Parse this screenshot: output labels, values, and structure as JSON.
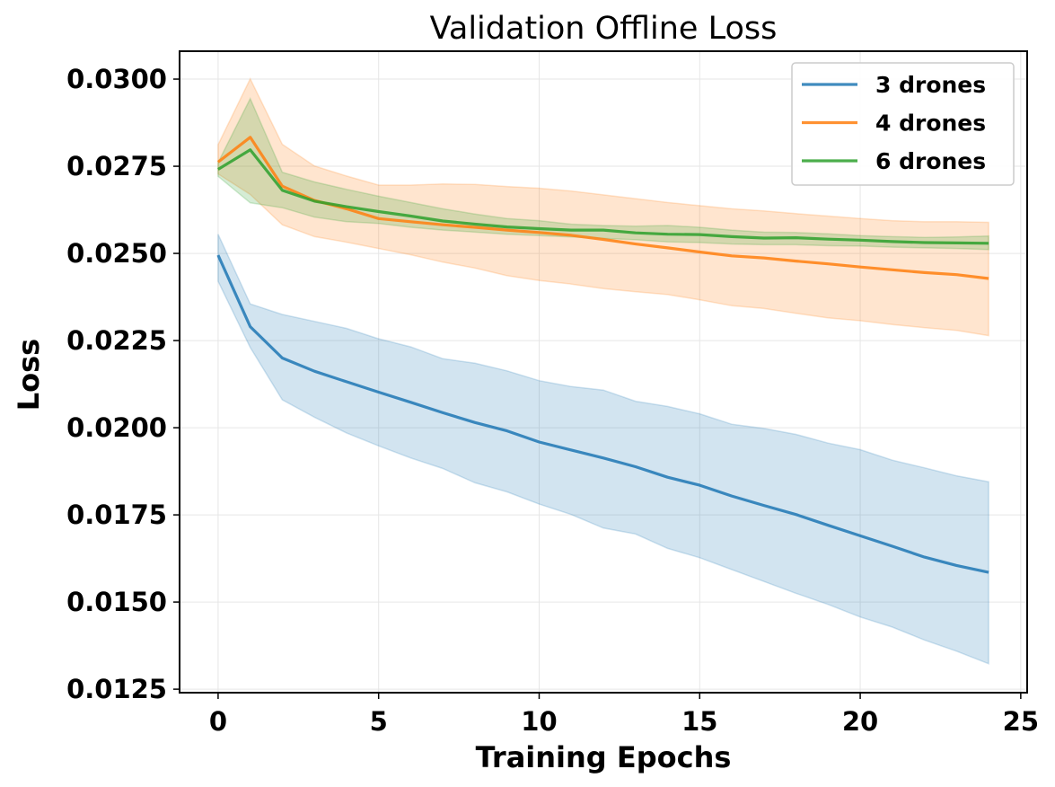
{
  "chart_data": {
    "type": "line",
    "title": "Validation Offline Loss",
    "xlabel": "Training Epochs",
    "ylabel": "Loss",
    "xlim": [
      -1.2,
      25.2
    ],
    "ylim": [
      0.0124,
      0.0308
    ],
    "xticks": [
      0,
      5,
      10,
      15,
      20,
      25
    ],
    "xtick_labels": [
      "0",
      "5",
      "10",
      "15",
      "20",
      "25"
    ],
    "yticks": [
      0.0125,
      0.015,
      0.0175,
      0.02,
      0.0225,
      0.025,
      0.0275,
      0.03
    ],
    "ytick_labels": [
      "0.0125",
      "0.0150",
      "0.0175",
      "0.0200",
      "0.0225",
      "0.0250",
      "0.0275",
      "0.0300"
    ],
    "grid": true,
    "legend_position": "top-right",
    "x": [
      0,
      1,
      2,
      3,
      4,
      5,
      6,
      7,
      8,
      9,
      10,
      11,
      12,
      13,
      14,
      15,
      16,
      17,
      18,
      19,
      20,
      21,
      22,
      23,
      24
    ],
    "series": [
      {
        "name": "3 drones",
        "color": "#1f77b4",
        "values": [
          0.02495,
          0.0229,
          0.022,
          0.02162,
          0.02132,
          0.02102,
          0.02073,
          0.02043,
          0.02015,
          0.01991,
          0.01959,
          0.01936,
          0.01913,
          0.01888,
          0.01858,
          0.01835,
          0.01804,
          0.01777,
          0.01751,
          0.0172,
          0.0169,
          0.0166,
          0.01629,
          0.01605,
          0.01585
        ],
        "upper": [
          0.02555,
          0.02355,
          0.02325,
          0.02305,
          0.02285,
          0.02255,
          0.02232,
          0.02198,
          0.02185,
          0.02163,
          0.02135,
          0.02118,
          0.02108,
          0.02076,
          0.02061,
          0.0204,
          0.0201,
          0.01998,
          0.01981,
          0.01956,
          0.01937,
          0.01907,
          0.01885,
          0.01862,
          0.01845
        ],
        "lower": [
          0.0242,
          0.0223,
          0.0208,
          0.0203,
          0.01985,
          0.01948,
          0.01913,
          0.01883,
          0.01842,
          0.01816,
          0.01781,
          0.01751,
          0.01712,
          0.01695,
          0.01654,
          0.01627,
          0.01593,
          0.01559,
          0.01525,
          0.01493,
          0.01457,
          0.01428,
          0.01391,
          0.01359,
          0.01323
        ]
      },
      {
        "name": "4 drones",
        "color": "#ff7f0e",
        "values": [
          0.02762,
          0.02833,
          0.02693,
          0.02652,
          0.02628,
          0.026,
          0.02591,
          0.02582,
          0.02575,
          0.02567,
          0.0256,
          0.02552,
          0.0254,
          0.02527,
          0.02516,
          0.02504,
          0.02493,
          0.02487,
          0.02478,
          0.0247,
          0.02461,
          0.02453,
          0.02445,
          0.02439,
          0.02428
        ],
        "upper": [
          0.02812,
          0.03001,
          0.02813,
          0.02751,
          0.02722,
          0.02696,
          0.02696,
          0.02699,
          0.02698,
          0.02692,
          0.02687,
          0.02679,
          0.02668,
          0.02657,
          0.02646,
          0.02637,
          0.02628,
          0.02622,
          0.02614,
          0.02607,
          0.026,
          0.02594,
          0.02591,
          0.02591,
          0.02589
        ],
        "lower": [
          0.02728,
          0.02669,
          0.02582,
          0.02548,
          0.02532,
          0.02514,
          0.02496,
          0.02475,
          0.02458,
          0.02436,
          0.02422,
          0.02412,
          0.02399,
          0.0239,
          0.02382,
          0.02367,
          0.0235,
          0.02342,
          0.02328,
          0.02315,
          0.02307,
          0.02296,
          0.02287,
          0.02279,
          0.02264
        ]
      },
      {
        "name": "6 drones",
        "color": "#2ca02c",
        "values": [
          0.02741,
          0.02797,
          0.02681,
          0.0265,
          0.02634,
          0.0262,
          0.02607,
          0.02593,
          0.02584,
          0.02576,
          0.02571,
          0.02567,
          0.02567,
          0.02559,
          0.02555,
          0.02554,
          0.02548,
          0.02544,
          0.02545,
          0.02541,
          0.02538,
          0.02534,
          0.02531,
          0.0253,
          0.02529
        ],
        "upper": [
          0.02761,
          0.02944,
          0.02733,
          0.02705,
          0.02684,
          0.02664,
          0.02646,
          0.02628,
          0.02613,
          0.026,
          0.02594,
          0.02584,
          0.0258,
          0.02578,
          0.0258,
          0.02575,
          0.02567,
          0.02561,
          0.0256,
          0.02556,
          0.02551,
          0.02548,
          0.02546,
          0.02547,
          0.0255
        ],
        "lower": [
          0.02721,
          0.02645,
          0.02631,
          0.02604,
          0.02591,
          0.02586,
          0.02575,
          0.02567,
          0.02561,
          0.02555,
          0.02551,
          0.02547,
          0.02543,
          0.02539,
          0.02533,
          0.02531,
          0.02527,
          0.02525,
          0.02525,
          0.02522,
          0.02521,
          0.02518,
          0.02516,
          0.02514,
          0.02511
        ]
      }
    ]
  }
}
